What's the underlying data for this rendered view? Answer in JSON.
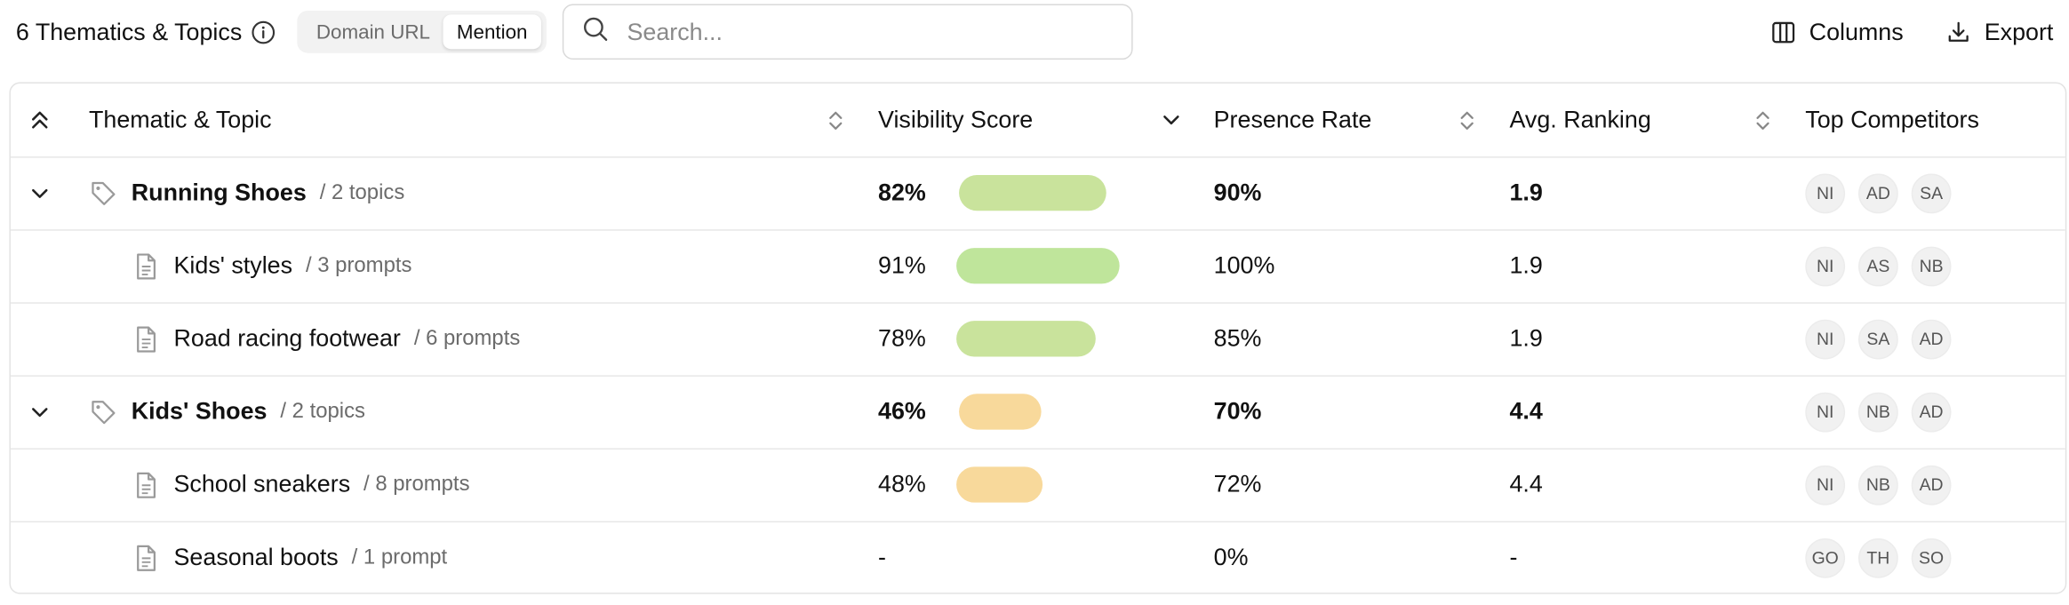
{
  "toolbar": {
    "title": "6 Thematics & Topics",
    "segments": [
      "Domain URL",
      "Mention"
    ],
    "active_segment": "Mention",
    "search_placeholder": "Search...",
    "columns_label": "Columns",
    "export_label": "Export"
  },
  "table": {
    "headers": [
      "Thematic & Topic",
      "Visibility Score",
      "Presence Rate",
      "Avg. Ranking",
      "Top Competitors"
    ],
    "colors": {
      "green_strong": "#bfe59b",
      "green_mid": "#c9e39c",
      "orange": "#f8d99b"
    },
    "rows": [
      {
        "type": "group",
        "name": "Running Shoes",
        "count": "/ 2 topics",
        "visibility": "82%",
        "visibility_value": 82,
        "bar_color": "#c9e39c",
        "presence": "90%",
        "ranking": "1.9",
        "competitors": [
          "NI",
          "AD",
          "SA"
        ]
      },
      {
        "type": "topic",
        "name": "Kids' styles",
        "count": "/ 3 prompts",
        "visibility": "91%",
        "visibility_value": 91,
        "bar_color": "#bfe59b",
        "presence": "100%",
        "ranking": "1.9",
        "competitors": [
          "NI",
          "AS",
          "NB"
        ]
      },
      {
        "type": "topic",
        "name": "Road racing footwear",
        "count": "/ 6 prompts",
        "visibility": "78%",
        "visibility_value": 78,
        "bar_color": "#c9e39c",
        "presence": "85%",
        "ranking": "1.9",
        "competitors": [
          "NI",
          "SA",
          "AD"
        ]
      },
      {
        "type": "group",
        "name": "Kids' Shoes",
        "count": "/ 2 topics",
        "visibility": "46%",
        "visibility_value": 46,
        "bar_color": "#f8d99b",
        "presence": "70%",
        "ranking": "4.4",
        "competitors": [
          "NI",
          "NB",
          "AD"
        ]
      },
      {
        "type": "topic",
        "name": "School sneakers",
        "count": "/ 8 prompts",
        "visibility": "48%",
        "visibility_value": 48,
        "bar_color": "#f8d99b",
        "presence": "72%",
        "ranking": "4.4",
        "competitors": [
          "NI",
          "NB",
          "AD"
        ]
      },
      {
        "type": "topic",
        "name": "Seasonal boots",
        "count": "/ 1 prompt",
        "visibility": "-",
        "visibility_value": null,
        "bar_color": "",
        "presence": "0%",
        "ranking": "-",
        "competitors": [
          "GO",
          "TH",
          "SO"
        ]
      }
    ]
  }
}
